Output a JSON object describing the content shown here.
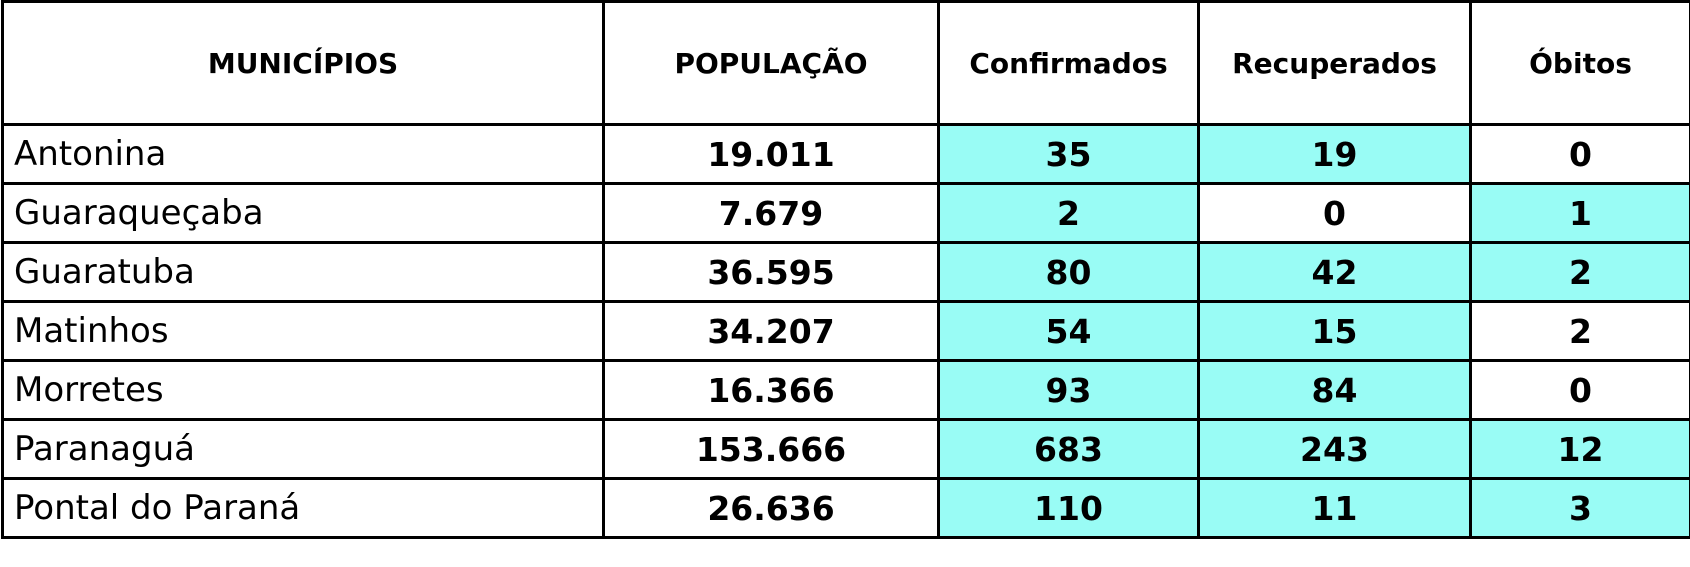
{
  "table": {
    "header": [
      "MUNICÍPIOS",
      "POPULAÇÃO",
      "Confirmados",
      "Recuperados",
      "Óbitos"
    ],
    "rows": [
      [
        "Antonina",
        "19.011",
        "35",
        "19",
        "0"
      ],
      [
        "Guaraqueçaba",
        "7.679",
        "2",
        "0",
        "1"
      ],
      [
        "Guaratuba",
        "36.595",
        "80",
        "42",
        "2"
      ],
      [
        "Matinhos",
        "34.207",
        "54",
        "15",
        "2"
      ],
      [
        "Morretes",
        "16.366",
        "93",
        "84",
        "0"
      ],
      [
        "Paranaguá",
        "153.666",
        "683",
        "243",
        "12"
      ],
      [
        "Pontal do Paraná",
        "26.636",
        "110",
        "11",
        "3"
      ]
    ]
  }
}
